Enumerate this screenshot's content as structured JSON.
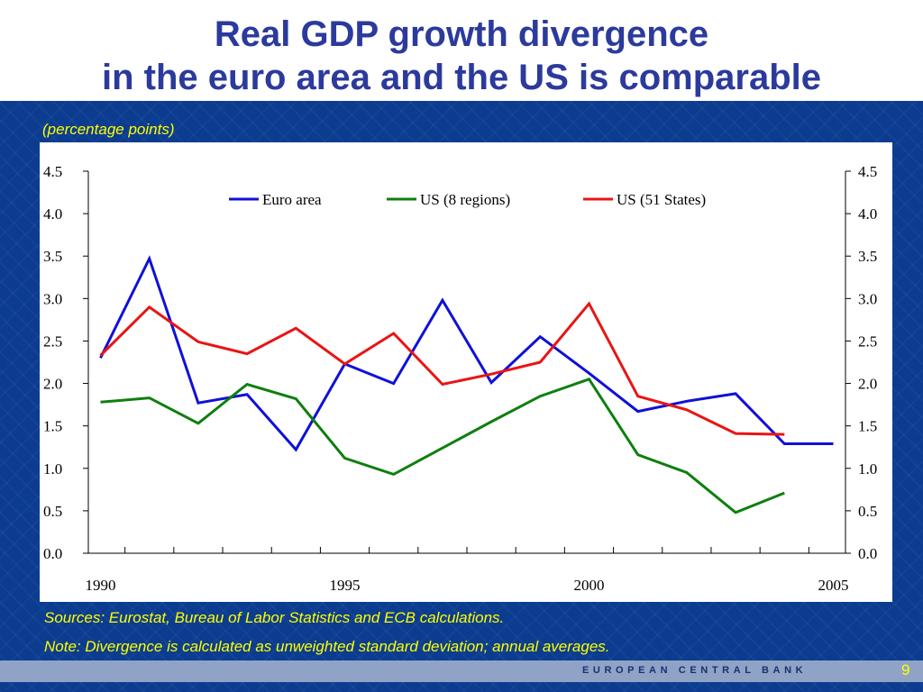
{
  "title": {
    "line1": "Real GDP growth divergence",
    "line2": "in the euro area and the US is comparable"
  },
  "subtitle": "(percentage points)",
  "sources": "Sources: Eurostat, Bureau of Labor Statistics and ECB calculations.",
  "note": "Note: Divergence is calculated as unweighted standard deviation; annual averages.",
  "footer": {
    "brand": "EUROPEAN CENTRAL BANK",
    "page_number": "9"
  },
  "colors": {
    "title": "#2b3a9c",
    "background": "#0b3c8f",
    "annotation_text": "#ffff00"
  },
  "chart_data": {
    "type": "line",
    "x": [
      1990,
      1991,
      1992,
      1993,
      1994,
      1995,
      1996,
      1997,
      1998,
      1999,
      2000,
      2001,
      2002,
      2003,
      2004,
      2005
    ],
    "x_tick_labels": [
      "1990",
      "1995",
      "2000",
      "2005"
    ],
    "y_tick_labels": [
      "0.0",
      "0.5",
      "1.0",
      "1.5",
      "2.0",
      "2.5",
      "3.0",
      "3.5",
      "4.0",
      "4.5"
    ],
    "ylim": [
      0,
      4.5
    ],
    "xlim": [
      1990,
      2005
    ],
    "legend_position": "top",
    "grid": false,
    "series": [
      {
        "name": "Euro area",
        "color": "#1010d8",
        "values": [
          2.3,
          3.47,
          1.77,
          1.87,
          1.22,
          2.23,
          2.0,
          2.98,
          2.01,
          2.55,
          2.12,
          1.67,
          1.79,
          1.88,
          1.29,
          1.29
        ]
      },
      {
        "name": "US (8 regions)",
        "color": "#0e7f0e",
        "values": [
          1.78,
          1.83,
          1.53,
          1.99,
          1.82,
          1.12,
          0.93,
          1.24,
          1.55,
          1.85,
          2.05,
          1.16,
          0.95,
          0.48,
          0.71,
          null
        ]
      },
      {
        "name": "US (51 States)",
        "color": "#e81515",
        "values": [
          2.33,
          2.9,
          2.49,
          2.35,
          2.65,
          2.23,
          2.59,
          1.99,
          2.11,
          2.25,
          2.94,
          1.85,
          1.69,
          1.41,
          1.4,
          null
        ]
      }
    ]
  }
}
